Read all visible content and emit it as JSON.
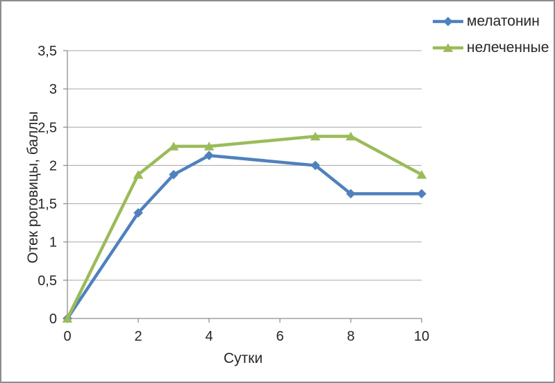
{
  "chart_data": {
    "type": "line",
    "title": "",
    "xlabel": "Сутки",
    "ylabel": "Отек роговицы, баллы",
    "xlim": [
      0,
      10
    ],
    "ylim": [
      0,
      3.5
    ],
    "x_ticks": [
      0,
      2,
      4,
      6,
      8,
      10
    ],
    "x_tick_labels": [
      "0",
      "2",
      "4",
      "6",
      "8",
      "10"
    ],
    "y_ticks": [
      0,
      0.5,
      1,
      1.5,
      2,
      2.5,
      3,
      3.5
    ],
    "y_tick_labels": [
      "0",
      "0,5",
      "1",
      "1,5",
      "2",
      "2,5",
      "3",
      "3,5"
    ],
    "decimal_separator": ",",
    "grid": "horizontal",
    "legend_position": "top-right",
    "series": [
      {
        "name": "мелатонин",
        "color": "#4F81BD",
        "marker": "diamond",
        "x": [
          0,
          2,
          3,
          4,
          7,
          8,
          10
        ],
        "values": [
          0,
          1.38,
          1.88,
          2.13,
          2.0,
          1.63,
          1.63
        ]
      },
      {
        "name": "нелеченные",
        "color": "#9BBB59",
        "marker": "triangle",
        "x": [
          0,
          2,
          3,
          4,
          7,
          8,
          10
        ],
        "values": [
          0,
          1.88,
          2.25,
          2.25,
          2.38,
          2.38,
          1.88
        ]
      }
    ]
  },
  "colors": {
    "gridline": "#A6A6A6",
    "axis": "#8E8E8E",
    "text": "#262626",
    "frame_border": "#8C8C8C",
    "background": "#FFFFFF"
  }
}
